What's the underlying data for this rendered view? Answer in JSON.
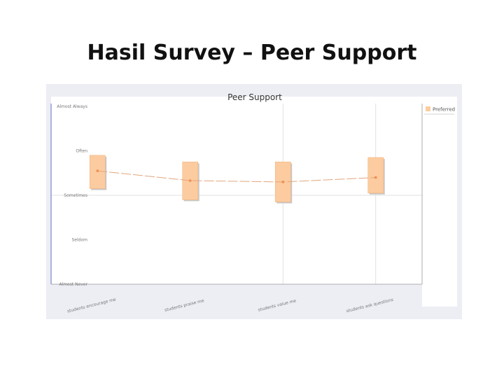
{
  "slide": {
    "title": "Hasil Survey – Peer Support"
  },
  "colors": {
    "box_fill": "#fccca0",
    "box_stroke": "#f3b37d",
    "box_shadow": "#c9c9c9",
    "median_point": "#f08a50",
    "median_line": "#e3a57c",
    "axis": "#7a86c9",
    "grid": "#d9d9d9",
    "panel": "#eceef4"
  },
  "chart_data": {
    "type": "box",
    "title": "Peer Support",
    "categories": [
      "students encourage me",
      "students praise me",
      "students value me",
      "students ask questions"
    ],
    "y_tick_labels": [
      "Almost Never",
      "Seldom",
      "Sometimes",
      "Often",
      "Almost Always"
    ],
    "ylim": [
      1,
      5
    ],
    "series": [
      {
        "name": "Preferred",
        "q1": [
          3.15,
          2.9,
          2.85,
          3.05
        ],
        "q3": [
          3.9,
          3.75,
          3.75,
          3.85
        ],
        "median": [
          3.55,
          3.33,
          3.3,
          3.4
        ]
      }
    ],
    "grid": true,
    "legend_position": "top-right"
  }
}
